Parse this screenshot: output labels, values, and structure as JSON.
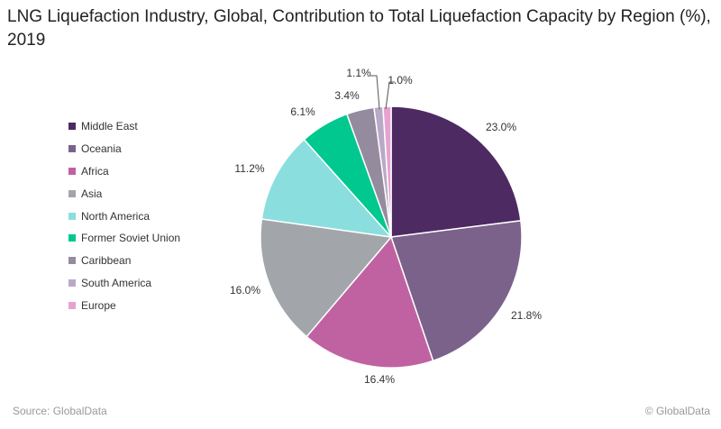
{
  "chart_data": {
    "type": "pie",
    "title": "LNG Liquefaction Industry, Global, Contribution to Total Liquefaction Capacity by Region (%), 2019",
    "categories": [
      "Middle East",
      "Oceania",
      "Africa",
      "Asia",
      "North America",
      "Former Soviet Union",
      "Caribbean",
      "South America",
      "Europe"
    ],
    "values": [
      23.0,
      21.8,
      16.4,
      16.0,
      11.2,
      6.1,
      3.4,
      1.1,
      1.0
    ],
    "labels": [
      "23.0%",
      "21.8%",
      "16.4%",
      "16.0%",
      "11.2%",
      "6.1%",
      "3.4%",
      "1.1%",
      "1.0%"
    ],
    "colors": [
      "#4d2a62",
      "#7b628b",
      "#c062a2",
      "#a2a6ab",
      "#8adede",
      "#00c88e",
      "#948b9e",
      "#b8aac6",
      "#e7a2d2"
    ],
    "legend_position": "left"
  },
  "footer": {
    "source": "Source: GlobalData",
    "copyright": "© GlobalData"
  }
}
